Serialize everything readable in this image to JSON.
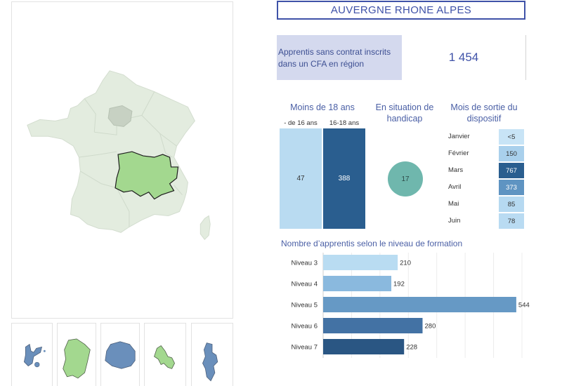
{
  "header": {
    "region": "AUVERGNE RHONE ALPES"
  },
  "kpi": {
    "label": "Apprentis sans contrat inscrits dans un CFA en région",
    "value": "1 454"
  },
  "age": {
    "title": "Moins de 18 ans",
    "groups": [
      {
        "label": "- de 16 ans",
        "value": "47",
        "color": "#b9dbf1"
      },
      {
        "label": "16-18 ans",
        "value": "388",
        "color": "#2a5e8f"
      }
    ]
  },
  "handicap": {
    "title": "En situation de handicap",
    "value": "17",
    "color": "#6fb7ad"
  },
  "mois": {
    "title": "Mois de sortie du dispositif",
    "rows": [
      {
        "month": "Janvier",
        "value": "<5",
        "color": "#c8e4f6",
        "text": "#333333"
      },
      {
        "month": "Février",
        "value": "150",
        "color": "#a9d0ec",
        "text": "#333333"
      },
      {
        "month": "Mars",
        "value": "767",
        "color": "#2a5e8f",
        "text": "#ffffff"
      },
      {
        "month": "Avril",
        "value": "373",
        "color": "#5f94c2",
        "text": "#ffffff"
      },
      {
        "month": "Mai",
        "value": "85",
        "color": "#b6d9f1",
        "text": "#333333"
      },
      {
        "month": "Juin",
        "value": "78",
        "color": "#b9dbf2",
        "text": "#333333"
      }
    ]
  },
  "chart_data": {
    "type": "bar",
    "orientation": "horizontal",
    "title": "Nombre d’apprentis selon le niveau de formation",
    "categories": [
      "Niveau 3",
      "Niveau 4",
      "Niveau 5",
      "Niveau 6",
      "Niveau 7"
    ],
    "values": [
      210,
      192,
      544,
      280,
      228
    ],
    "colors": [
      "#b9dcf2",
      "#8ab9de",
      "#6699c5",
      "#4372a4",
      "#2a5683"
    ],
    "xlim": [
      0,
      560
    ],
    "grid": true
  },
  "maps": {
    "main": "France métropolitaine",
    "highlight_color": "#a3d88f",
    "base_color": "#e3ecdf",
    "overseas": [
      {
        "name": "Guadeloupe",
        "color": "#6a8fbb"
      },
      {
        "name": "Guyane",
        "color": "#a3d88f"
      },
      {
        "name": "La Réunion",
        "color": "#6a8fbb"
      },
      {
        "name": "Martinique",
        "color": "#a3d88f"
      },
      {
        "name": "Mayotte",
        "color": "#6a8fbb"
      }
    ]
  }
}
